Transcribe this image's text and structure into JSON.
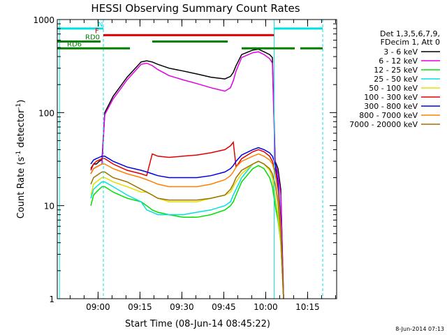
{
  "chart_data": {
    "type": "line",
    "title": "HESSI Observing Summary Count Rates",
    "xlabel": "Start Time (08-Jun-14 08:45:22)",
    "ylabel_main": "Count Rate (s",
    "ylabel_sup1": "-1",
    "ylabel_mid": " detector",
    "ylabel_sup2": "-1",
    "ylabel_end": ")",
    "footer": "8-Jun-2014 07:13",
    "x_axis": {
      "unit": "minutes since 08:45:22",
      "range": [
        0,
        100
      ],
      "ticks": [
        {
          "label": "09:00",
          "value": 14.6
        },
        {
          "label": "09:15",
          "value": 29.6
        },
        {
          "label": "09:30",
          "value": 44.6
        },
        {
          "label": "09:45",
          "value": 59.6
        },
        {
          "label": "10:00",
          "value": 74.6
        },
        {
          "label": "10:15",
          "value": 89.6
        }
      ]
    },
    "y_axis": {
      "scale": "log",
      "range": [
        1,
        1000
      ],
      "ticks": [
        {
          "label": "1",
          "value": 1
        },
        {
          "label": "10",
          "value": 10
        },
        {
          "label": "100",
          "value": 100
        },
        {
          "label": "1000",
          "value": 1000
        }
      ]
    },
    "legend": {
      "placement": "right",
      "header": [
        "Det 1,3,5,6,7,9,",
        "FDecim 1, Att 0"
      ]
    },
    "flags": [
      {
        "label": "N",
        "color": "#00e0e0",
        "segments": [
          [
            0,
            16.5
          ],
          [
            77.6,
            95
          ]
        ],
        "level": 800
      },
      {
        "label": "F",
        "color": "#e00000",
        "segments": [
          [
            16.5,
            77.6
          ]
        ],
        "level": 680
      },
      {
        "label": "RD0",
        "color": "#008000",
        "segments": [
          [
            0,
            15.5
          ],
          [
            34,
            61
          ]
        ],
        "level": 580
      },
      {
        "label": "RD6",
        "color": "#008000",
        "segments": [
          [
            0,
            26
          ],
          [
            66,
            85
          ],
          [
            87,
            95
          ]
        ],
        "level": 490
      }
    ],
    "vlines": [
      {
        "color": "#00e0e0",
        "style": "solid",
        "x": 0.8
      },
      {
        "color": "#00e0e0",
        "style": "dash",
        "x": 16.5
      },
      {
        "color": "#00e0e0",
        "style": "solid",
        "x": 77.6
      },
      {
        "color": "#00e0e0",
        "style": "dash",
        "x": 95
      }
    ],
    "x": [
      12,
      13,
      14,
      15,
      16,
      17,
      20,
      25,
      30,
      32,
      34,
      36,
      40,
      45,
      50,
      55,
      60,
      62,
      63,
      64,
      66,
      70,
      72,
      74,
      76,
      77,
      78,
      79,
      80,
      81
    ],
    "series": [
      {
        "name": "3 - 6 keV",
        "color": "#000000",
        "values": [
          25,
          28,
          28,
          30,
          31,
          100,
          150,
          240,
          350,
          360,
          350,
          330,
          300,
          280,
          260,
          240,
          230,
          245,
          270,
          320,
          420,
          470,
          480,
          450,
          420,
          390,
          30,
          25,
          15,
          1
        ]
      },
      {
        "name": "6 - 12 keV",
        "color": "#e000e0",
        "values": [
          22,
          25,
          26,
          27,
          28,
          95,
          140,
          225,
          330,
          340,
          320,
          290,
          250,
          225,
          205,
          185,
          170,
          185,
          220,
          280,
          390,
          440,
          450,
          420,
          380,
          340,
          28,
          22,
          13,
          1
        ]
      },
      {
        "name": "12 - 25 keV",
        "color": "#00e000",
        "values": [
          10,
          13,
          14,
          15,
          16,
          16,
          14,
          12,
          11,
          10,
          9,
          8.5,
          8,
          7.5,
          7.5,
          8,
          9,
          10,
          11,
          13,
          18,
          25,
          27,
          25,
          20,
          16,
          10,
          7,
          4,
          1
        ]
      },
      {
        "name": "25 - 50 keV",
        "color": "#00e0e0",
        "values": [
          12,
          15,
          16,
          17,
          18,
          18,
          16,
          13,
          11,
          9,
          8.5,
          8,
          8,
          8,
          8.5,
          9,
          10,
          11,
          13,
          15,
          20,
          28,
          30,
          28,
          24,
          20,
          12,
          8,
          4,
          1
        ]
      },
      {
        "name": "50 - 100 keV",
        "color": "#e0e000",
        "values": [
          13,
          17,
          18,
          19,
          20,
          20,
          18,
          16,
          14,
          14,
          13,
          12,
          11,
          11,
          11,
          12,
          13,
          14,
          16,
          18,
          22,
          28,
          30,
          28,
          24,
          20,
          13,
          8,
          4,
          1
        ]
      },
      {
        "name": "100 - 300 keV",
        "color": "#e00000",
        "values": [
          24,
          28,
          30,
          31,
          32,
          32,
          28,
          24,
          22,
          21,
          36,
          34,
          33,
          34,
          35,
          37,
          40,
          44,
          48,
          26,
          32,
          38,
          40,
          38,
          34,
          30,
          24,
          15,
          6,
          1
        ]
      },
      {
        "name": "300 - 800 keV",
        "color": "#0000e0",
        "values": [
          28,
          31,
          32,
          33,
          34,
          34,
          30,
          26,
          24,
          23,
          22,
          21,
          20,
          20,
          20,
          21,
          23,
          25,
          27,
          30,
          35,
          40,
          42,
          40,
          37,
          34,
          28,
          18,
          7,
          1
        ]
      },
      {
        "name": "800 - 7000 keV",
        "color": "#ff8000",
        "values": [
          22,
          25,
          26,
          27,
          28,
          28,
          25,
          22,
          20,
          19,
          18,
          17,
          16,
          16,
          16,
          17,
          19,
          21,
          23,
          26,
          30,
          34,
          36,
          34,
          31,
          28,
          22,
          14,
          6,
          1
        ]
      },
      {
        "name": "7000 - 20000 keV",
        "color": "#a07000",
        "values": [
          17,
          20,
          21,
          22,
          23,
          23,
          20,
          18,
          15,
          14,
          13,
          12,
          11.5,
          11.5,
          11.5,
          12,
          13,
          15,
          17,
          20,
          24,
          28,
          30,
          28,
          25,
          22,
          17,
          11,
          5,
          1
        ]
      }
    ]
  }
}
